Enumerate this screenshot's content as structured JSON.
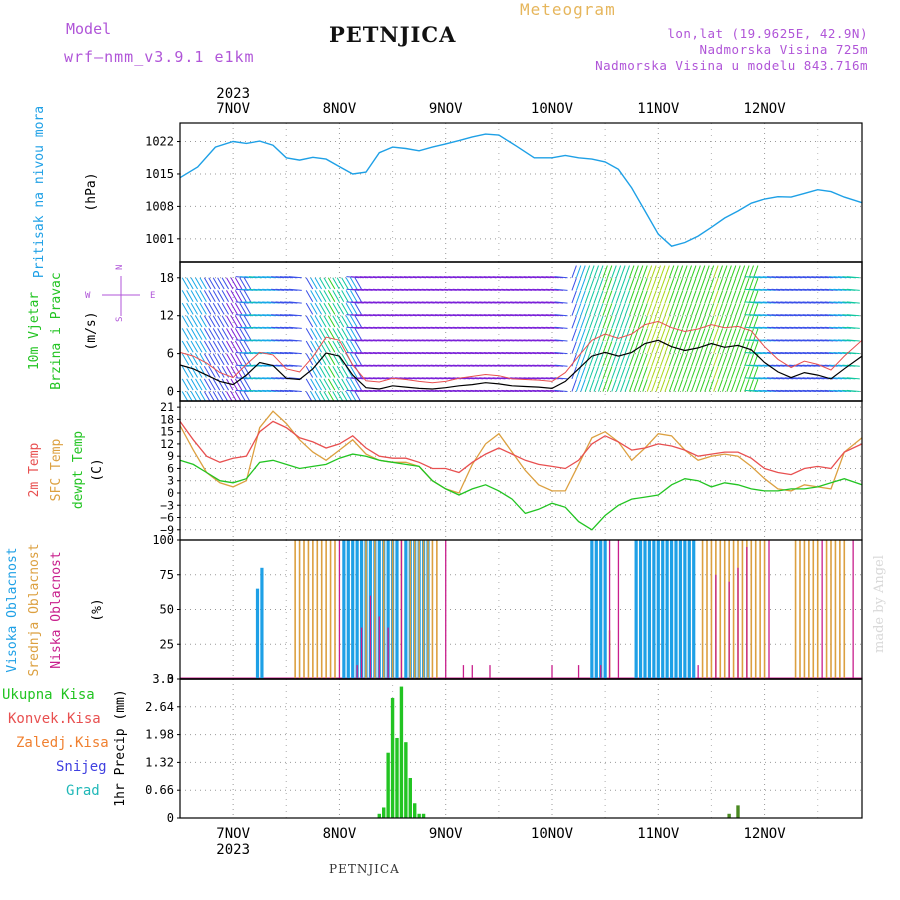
{
  "header": {
    "model_label": "Model",
    "model_name": "wrf—nmm_v3.9.1  e1km",
    "station": "PETNJICA",
    "meteogram": "Meteogram",
    "lonlat": "lon,lat (19.9625E, 42.9N)",
    "elevation": "Nadmorska Visina 725m",
    "model_elevation": "Nadmorska Visina u modelu 843.716m"
  },
  "footer": {
    "station": "PETNJICA",
    "watermark": "made by Angel"
  },
  "colors": {
    "pressure": "#1ea0e6",
    "temp2m": "#e85050",
    "sfctemp": "#dca040",
    "dewpt": "#22c422",
    "high_cloud": "#1ea0e6",
    "mid_cloud": "#dca040",
    "low_cloud": "#c81e8c",
    "precip_total": "#22c422",
    "precip_conv": "#e85050",
    "precip_frozen": "#f08030",
    "snow": "#4040e0",
    "grad": "#20b8b8",
    "wind_speed": "#000000",
    "gust": "#e85050",
    "title_purple": "#b055d8"
  },
  "time_axis": {
    "year": "2023",
    "days": [
      "7NOV",
      "8NOV",
      "9NOV",
      "10NOV",
      "11NOV",
      "12NOV"
    ],
    "day_start_hours": [
      12,
      36,
      60,
      84,
      108,
      132
    ],
    "range_hours": [
      0,
      154
    ]
  },
  "chart_data": [
    {
      "type": "line",
      "name": "pressure",
      "ylabel": "Pritisak na nivou mora",
      "unit": "(hPa)",
      "ylim": [
        996,
        1026
      ],
      "yticks": [
        1001,
        1008,
        1015,
        1022
      ],
      "grid": true,
      "x": [
        0,
        4,
        8,
        12,
        15,
        18,
        21,
        24,
        27,
        30,
        33,
        36,
        39,
        42,
        45,
        48,
        51,
        54,
        57,
        60,
        63,
        66,
        69,
        72,
        76,
        80,
        84,
        87,
        90,
        93,
        96,
        99,
        102,
        105,
        108,
        111,
        114,
        117,
        120,
        123,
        126,
        129,
        132,
        135,
        138,
        141,
        144,
        147,
        150,
        154
      ],
      "series": [
        {
          "values": [
            1014.2,
            1016.5,
            1020.8,
            1022.0,
            1021.6,
            1022.1,
            1021.2,
            1018.5,
            1018.0,
            1018.6,
            1018.2,
            1016.6,
            1015.0,
            1015.4,
            1019.6,
            1020.8,
            1020.5,
            1020.0,
            1020.8,
            1021.5,
            1022.2,
            1023.0,
            1023.6,
            1023.4,
            1021.0,
            1018.5,
            1018.5,
            1019.0,
            1018.5,
            1018.2,
            1017.6,
            1016.0,
            1012.0,
            1007.0,
            1002.0,
            999.4,
            1000.2,
            1001.6,
            1003.5,
            1005.5,
            1007.0,
            1008.7,
            1009.6,
            1010.1,
            1010.0,
            1010.8,
            1011.6,
            1011.2,
            1010.0,
            1008.8
          ]
        }
      ]
    },
    {
      "type": "line",
      "name": "wind",
      "ylabel": "10m Vjetar Brzina i Pravac",
      "unit": "(m/s)",
      "compass": {
        "n": "N",
        "s": "S",
        "e": "E",
        "w": "W"
      },
      "ylim": [
        -1.5,
        20.5
      ],
      "yticks": [
        0,
        6,
        12,
        18
      ],
      "grid": true,
      "x": [
        0,
        3,
        6,
        9,
        12,
        15,
        18,
        21,
        24,
        27,
        30,
        33,
        36,
        39,
        42,
        45,
        48,
        51,
        54,
        57,
        60,
        63,
        66,
        69,
        72,
        75,
        78,
        81,
        84,
        87,
        90,
        93,
        96,
        99,
        102,
        105,
        108,
        111,
        114,
        117,
        120,
        123,
        126,
        129,
        132,
        135,
        138,
        141,
        144,
        147,
        150,
        154
      ],
      "series": [
        {
          "values": [
            4.2,
            3.6,
            2.6,
            1.6,
            1.1,
            2.6,
            4.6,
            4.1,
            2.1,
            1.9,
            3.6,
            6.1,
            5.6,
            2.6,
            0.6,
            0.4,
            0.9,
            0.7,
            0.5,
            0.4,
            0.6,
            0.9,
            1.1,
            1.4,
            1.2,
            0.9,
            0.8,
            0.7,
            0.5,
            1.6,
            3.6,
            5.6,
            6.2,
            5.6,
            6.2,
            7.6,
            8.1,
            7.1,
            6.5,
            6.9,
            7.6,
            7.0,
            7.3,
            6.6,
            4.6,
            3.1,
            2.2,
            3.0,
            2.6,
            2.0,
            3.6,
            5.6
          ]
        },
        {
          "values": [
            6.2,
            5.6,
            4.5,
            3.0,
            2.2,
            4.3,
            6.2,
            5.8,
            3.6,
            3.1,
            5.5,
            8.6,
            8.1,
            4.2,
            1.7,
            1.5,
            2.1,
            1.9,
            1.6,
            1.4,
            1.6,
            2.1,
            2.4,
            2.7,
            2.5,
            2.0,
            1.9,
            1.8,
            1.6,
            3.0,
            5.6,
            8.1,
            9.1,
            8.4,
            9.1,
            10.6,
            11.1,
            10.1,
            9.5,
            9.9,
            10.6,
            10.1,
            10.3,
            9.6,
            7.1,
            5.1,
            3.8,
            4.8,
            4.3,
            3.4,
            5.6,
            8.1
          ]
        }
      ]
    },
    {
      "type": "line",
      "name": "temperature",
      "ylabels": [
        "2m Temp",
        "SFC Temp",
        "dewpt Temp"
      ],
      "unit": "(C)",
      "ylim": [
        -11.5,
        22.5
      ],
      "yticks": [
        -9,
        -6,
        -3,
        0,
        3,
        6,
        9,
        12,
        15,
        18,
        21
      ],
      "grid": true,
      "x": [
        0,
        3,
        6,
        9,
        12,
        15,
        18,
        21,
        24,
        27,
        30,
        33,
        36,
        39,
        42,
        45,
        48,
        51,
        54,
        57,
        60,
        63,
        66,
        69,
        72,
        75,
        78,
        81,
        84,
        87,
        90,
        93,
        96,
        99,
        102,
        105,
        108,
        111,
        114,
        117,
        120,
        123,
        126,
        129,
        132,
        135,
        138,
        141,
        144,
        147,
        150,
        154
      ],
      "series": [
        {
          "values": [
            17.5,
            13.0,
            9.0,
            7.5,
            8.5,
            9.0,
            15.0,
            17.5,
            16.0,
            13.5,
            12.5,
            11.0,
            12.0,
            14.0,
            11.0,
            9.0,
            8.5,
            8.5,
            7.5,
            6.0,
            6.0,
            5.0,
            7.5,
            9.5,
            11.0,
            9.5,
            8.0,
            7.0,
            6.5,
            6.0,
            8.0,
            12.0,
            14.0,
            12.5,
            10.5,
            11.0,
            12.0,
            11.5,
            10.5,
            9.0,
            9.5,
            10.0,
            10.0,
            8.5,
            6.0,
            5.0,
            4.5,
            6.0,
            6.5,
            6.0,
            10.0,
            12.0
          ]
        },
        {
          "values": [
            16.5,
            10.5,
            5.0,
            2.5,
            1.5,
            3.0,
            16.0,
            20.0,
            17.0,
            13.0,
            10.0,
            8.0,
            10.5,
            13.0,
            9.5,
            8.0,
            7.5,
            7.5,
            6.5,
            3.0,
            1.0,
            0.0,
            7.0,
            12.0,
            14.5,
            10.0,
            5.5,
            2.0,
            0.5,
            0.5,
            7.0,
            13.5,
            15.0,
            12.5,
            8.0,
            11.0,
            14.5,
            14.0,
            10.5,
            8.0,
            9.0,
            9.5,
            9.0,
            6.5,
            3.5,
            1.0,
            0.5,
            2.0,
            1.5,
            1.0,
            10.0,
            13.5
          ]
        },
        {
          "values": [
            8.0,
            7.0,
            5.0,
            3.0,
            2.5,
            3.5,
            7.5,
            8.0,
            7.0,
            6.0,
            6.5,
            7.0,
            8.5,
            9.5,
            9.0,
            8.0,
            7.5,
            7.0,
            6.5,
            3.0,
            1.0,
            -0.5,
            1.0,
            2.0,
            0.5,
            -1.5,
            -5.0,
            -4.0,
            -2.5,
            -3.5,
            -7.0,
            -9.0,
            -5.5,
            -3.0,
            -1.5,
            -1.0,
            -0.5,
            2.0,
            3.5,
            3.0,
            1.5,
            2.5,
            2.0,
            1.0,
            0.5,
            0.5,
            1.0,
            1.0,
            1.5,
            2.5,
            3.5,
            2.0
          ]
        }
      ]
    },
    {
      "type": "bar",
      "name": "clouds",
      "ylabels": [
        "Visoka Oblacnost",
        "Srednja Oblacnost",
        "Niska Oblacnost"
      ],
      "unit": "(%)",
      "ylim": [
        0,
        100
      ],
      "yticks": [
        0,
        25,
        50,
        75,
        100
      ],
      "grid": true,
      "series": [
        {
          "x": [
            17.5,
            18.5,
            37,
            38,
            39,
            40,
            41,
            42,
            43,
            44,
            45,
            46,
            47,
            48,
            49,
            51,
            52,
            53,
            54,
            55,
            56,
            93,
            94,
            95,
            96,
            103,
            104,
            105,
            106,
            107,
            108,
            109,
            110,
            111,
            112,
            113,
            114,
            115,
            116
          ],
          "values": [
            65,
            80,
            100,
            100,
            100,
            100,
            100,
            100,
            100,
            100,
            100,
            100,
            100,
            100,
            100,
            100,
            100,
            100,
            100,
            100,
            100,
            100,
            100,
            100,
            100,
            100,
            100,
            100,
            100,
            100,
            100,
            100,
            100,
            100,
            100,
            100,
            100,
            100,
            100
          ]
        },
        {
          "x": [
            26,
            27,
            28,
            29,
            30,
            31,
            32,
            33,
            34,
            35,
            42,
            44,
            46,
            48,
            50,
            52,
            53,
            54,
            55,
            56,
            57,
            58,
            97,
            118,
            119,
            120,
            121,
            122,
            123,
            124,
            125,
            126,
            127,
            128,
            129,
            130,
            131,
            132,
            139,
            140,
            141,
            142,
            143,
            144,
            146,
            147,
            148,
            149,
            150
          ],
          "values": [
            100,
            100,
            100,
            100,
            100,
            100,
            100,
            100,
            100,
            100,
            100,
            100,
            100,
            100,
            100,
            100,
            100,
            100,
            100,
            100,
            100,
            100,
            35,
            100,
            100,
            100,
            100,
            100,
            100,
            100,
            100,
            100,
            100,
            100,
            100,
            100,
            100,
            100,
            100,
            100,
            100,
            100,
            100,
            100,
            100,
            100,
            100,
            100,
            100
          ]
        },
        {
          "x": [
            36,
            40,
            41,
            43,
            45,
            47,
            50,
            60,
            64,
            66,
            70,
            84,
            90,
            95,
            97,
            99,
            117,
            121,
            124,
            126,
            128,
            133,
            145,
            152
          ],
          "values": [
            100,
            10,
            37,
            60,
            45,
            37,
            100,
            100,
            10,
            10,
            10,
            10,
            10,
            10,
            100,
            100,
            10,
            75,
            70,
            80,
            95,
            100,
            100,
            100
          ]
        }
      ]
    },
    {
      "type": "bar",
      "name": "precipitation",
      "legend": [
        "Ukupna Kisa",
        "Konvek.Kisa",
        "Zaledj.Kisa",
        "Snijeg",
        "Grad"
      ],
      "ylabel": "1hr Precip",
      "unit": "(mm)",
      "ylim": [
        0,
        3.3
      ],
      "yticks": [
        0,
        0.66,
        1.32,
        1.98,
        2.64,
        3.3
      ],
      "tick_labels": [
        "0",
        "0.66",
        "1.32",
        "1.98",
        "2.64",
        "3.3"
      ],
      "grid": true,
      "series": [
        {
          "x": [
            45,
            46,
            47,
            48,
            49,
            50,
            51,
            52,
            53,
            54,
            55,
            124,
            126
          ],
          "values": [
            0.1,
            0.25,
            1.55,
            2.85,
            1.9,
            3.12,
            1.8,
            0.95,
            0.35,
            0.1,
            0.1,
            0.1,
            0.3
          ]
        }
      ]
    }
  ]
}
